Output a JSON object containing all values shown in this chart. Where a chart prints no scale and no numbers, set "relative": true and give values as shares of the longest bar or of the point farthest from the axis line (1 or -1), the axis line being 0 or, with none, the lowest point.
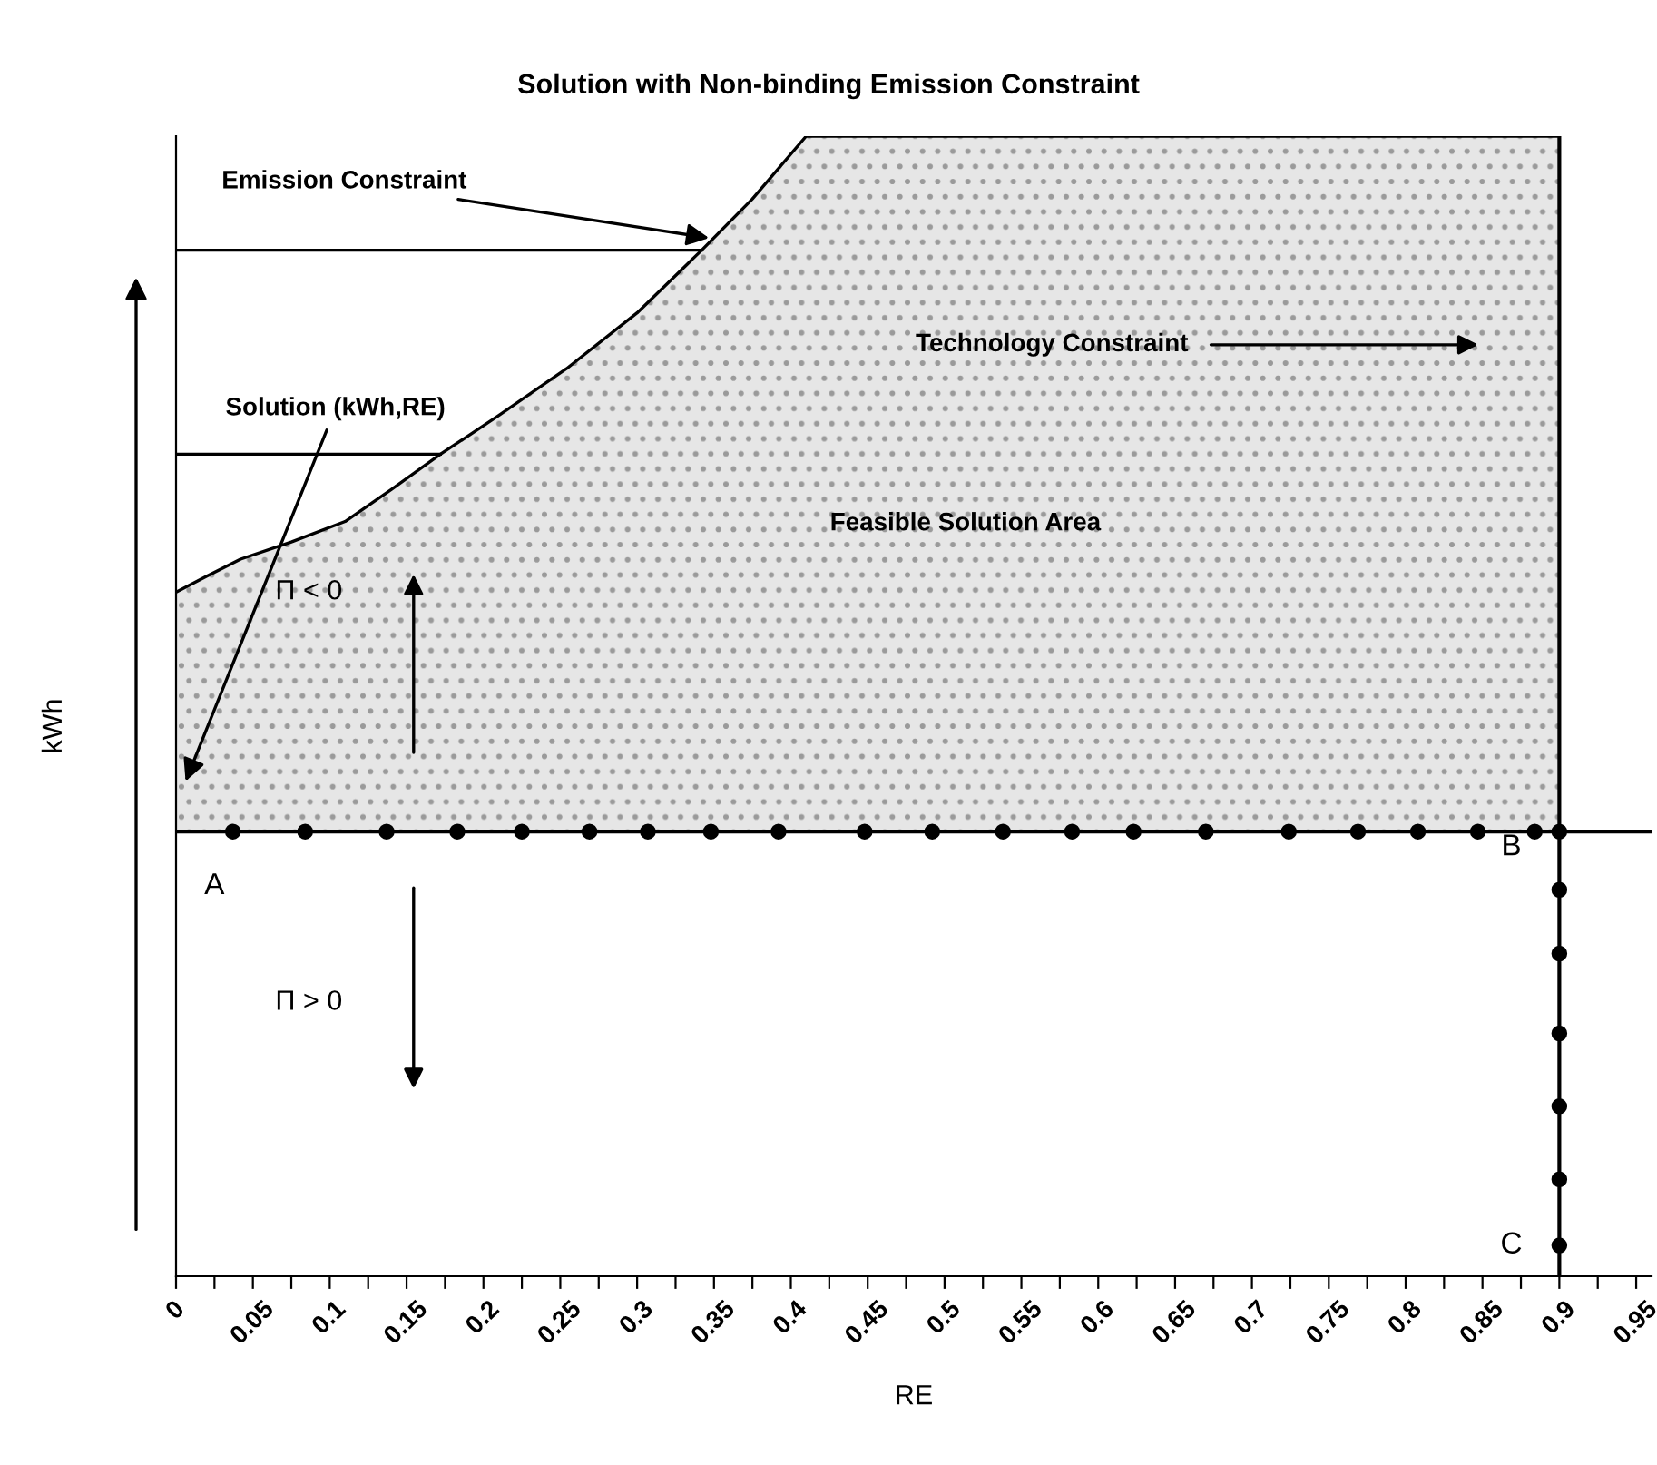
{
  "chart_data": {
    "type": "line",
    "title": "Solution with Non-binding Emission Constraint",
    "xlabel": "RE",
    "ylabel": "kWh",
    "relative": true,
    "legend": false,
    "grid": false,
    "tick_labels": "x",
    "xlim": [
      0,
      0.96
    ],
    "xticks": [
      0,
      {
        "value": 0.025,
        "label": null
      },
      0.05,
      {
        "value": 0.075,
        "label": null
      },
      0.1,
      {
        "value": 0.125,
        "label": null
      },
      0.15,
      {
        "value": 0.175,
        "label": null
      },
      0.2,
      {
        "value": 0.225,
        "label": null
      },
      0.25,
      {
        "value": 0.275,
        "label": null
      },
      0.3,
      {
        "value": 0.325,
        "label": null
      },
      0.35,
      {
        "value": 0.375,
        "label": null
      },
      0.4,
      {
        "value": 0.425,
        "label": null
      },
      0.45,
      {
        "value": 0.475,
        "label": null
      },
      0.5,
      {
        "value": 0.525,
        "label": null
      },
      0.55,
      {
        "value": 0.575,
        "label": null
      },
      0.6,
      {
        "value": 0.625,
        "label": null
      },
      0.65,
      {
        "value": 0.675,
        "label": null
      },
      0.7,
      {
        "value": 0.725,
        "label": null
      },
      0.75,
      {
        "value": 0.775,
        "label": null
      },
      0.8,
      {
        "value": 0.825,
        "label": null
      },
      0.85,
      {
        "value": 0.875,
        "label": null
      },
      0.9,
      {
        "value": 0.925,
        "label": null
      },
      0.95
    ],
    "series": [
      {
        "type": "area",
        "color": "#e6e6e6",
        "x": [
          0,
          0.02,
          0.042,
          0.075,
          0.11,
          0.14,
          0.172,
          0.21,
          0.254,
          0.3,
          0.342,
          0.375,
          0.41,
          0.9
        ],
        "values": [
          0.6,
          0.614,
          0.629,
          0.644,
          0.662,
          0.69,
          0.721,
          0.755,
          0.796,
          0.845,
          0.9,
          0.945,
          1.0,
          1.0
        ]
      },
      {
        "color": "#000000",
        "marker": "none",
        "x": [
          0,
          0.342
        ],
        "values": [
          0.9,
          0.9
        ]
      },
      {
        "type": "line",
        "color": "#000000",
        "marker": "none",
        "x": [
          0,
          0.172
        ],
        "values": [
          0.721,
          0.721
        ]
      },
      {
        "type": "scatter",
        "color": "#000000",
        "marker": "circle",
        "x": [
          0.037,
          0.084,
          0.137,
          0.183,
          0.225,
          0.269,
          0.307,
          0.348,
          0.392,
          0.448,
          0.492,
          0.538,
          0.583,
          0.623,
          0.67,
          0.724,
          0.769,
          0.808,
          0.847,
          0.884,
          0.9
        ],
        "values": [
          0.39,
          0.39,
          0.39,
          0.39,
          0.39,
          0.39,
          0.39,
          0.39,
          0.39,
          0.39,
          0.39,
          0.39,
          0.39,
          0.39,
          0.39,
          0.39,
          0.39,
          0.39,
          0.39,
          0.39,
          0.39
        ]
      },
      {
        "type": "scatter",
        "color": "#000000",
        "marker": "circle",
        "x": [
          0.9,
          0.9,
          0.9,
          0.9,
          0.9,
          0.9
        ],
        "values": [
          0.339,
          0.283,
          0.213,
          0.149,
          0.085,
          0.027
        ]
      }
    ],
    "ref_lines": [
      {
        "axis": "x",
        "value": 0.9,
        "label": null
      },
      {
        "axis": "y",
        "value": 0.39,
        "label": null
      }
    ],
    "annotations": [
      {
        "text": "Emission Constraint",
        "x": 0.35,
        "y": 0.91
      },
      {
        "text": "Solution (kWh,RE)",
        "x": 0.005,
        "y": 0.43
      },
      "Technology Constraint",
      "Feasible Solution Area",
      "Π < 0",
      "Π > 0",
      {
        "text": "A",
        "x": 0,
        "y": 0.39
      },
      {
        "text": "B",
        "x": 0.9,
        "y": 0.39
      },
      {
        "text": "C",
        "x": 0.9,
        "y": 0
      }
    ]
  }
}
